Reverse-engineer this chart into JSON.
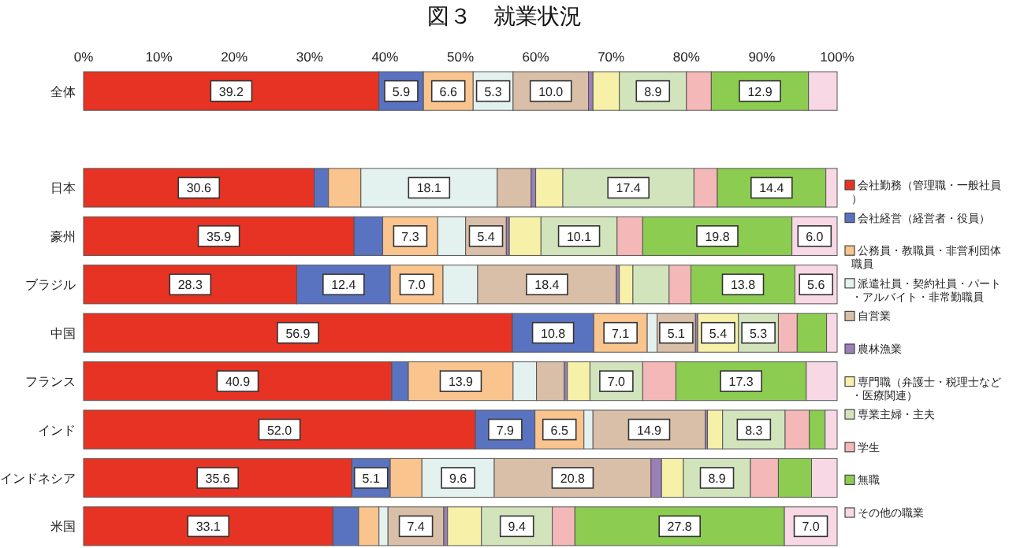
{
  "chart_data": {
    "type": "bar",
    "orientation": "horizontal",
    "stacked": true,
    "title": "図３　就業状況",
    "categories": [
      "全体",
      null,
      "日本",
      "豪州",
      "ブラジル",
      "中国",
      "フランス",
      "インド",
      "インドネシア",
      "米国"
    ],
    "xlim": [
      0,
      100
    ],
    "xticks": [
      {
        "value": 0,
        "label": "0%"
      },
      {
        "value": 10,
        "label": "10%"
      },
      {
        "value": 20,
        "label": "20%"
      },
      {
        "value": 30,
        "label": "30%"
      },
      {
        "value": 40,
        "label": "40%"
      },
      {
        "value": 50,
        "label": "50%"
      },
      {
        "value": 60,
        "label": "60%"
      },
      {
        "value": 70,
        "label": "70%"
      },
      {
        "value": 80,
        "label": "80%"
      },
      {
        "value": 90,
        "label": "90%"
      },
      {
        "value": 100,
        "label": "100%"
      }
    ],
    "grid": false,
    "legend": "right",
    "series": [
      {
        "name": "会社勤務（管理職・一般社員）",
        "color": "#e63323",
        "values": [
          39.2,
          null,
          30.6,
          35.9,
          28.3,
          56.9,
          40.9,
          52.0,
          35.6,
          33.1
        ],
        "value_labels": [
          "39.2",
          null,
          "30.6",
          "35.9",
          "28.3",
          "56.9",
          "40.9",
          "52.0",
          "35.6",
          "33.1"
        ]
      },
      {
        "name": "会社経営（経営者・役員）",
        "color": "#5a73c0",
        "values": [
          5.9,
          null,
          1.9,
          3.8,
          12.4,
          10.8,
          2.2,
          7.9,
          5.1,
          3.4
        ],
        "value_labels": [
          "5.9",
          null,
          null,
          null,
          "12.4",
          "10.8",
          null,
          "7.9",
          "5.1",
          null
        ]
      },
      {
        "name": "公務員・教職員・非営利団体職員",
        "color": "#f9c48e",
        "values": [
          6.6,
          null,
          4.3,
          7.3,
          7.0,
          7.1,
          13.9,
          6.5,
          4.2,
          2.7
        ],
        "value_labels": [
          "6.6",
          null,
          null,
          "7.3",
          "7.0",
          "7.1",
          "13.9",
          "6.5",
          null,
          null
        ]
      },
      {
        "name": "派遣社員・契約社員・パート・アルバイト・非常勤職員",
        "color": "#e3f1ef",
        "values": [
          5.3,
          null,
          18.1,
          3.7,
          4.6,
          1.3,
          3.1,
          1.2,
          9.6,
          1.2
        ],
        "value_labels": [
          "5.3",
          null,
          "18.1",
          null,
          null,
          null,
          null,
          null,
          "9.6",
          null
        ]
      },
      {
        "name": "自営業",
        "color": "#d9bfa8",
        "values": [
          10.0,
          null,
          4.5,
          5.4,
          18.4,
          5.1,
          3.7,
          14.9,
          20.8,
          7.4
        ],
        "value_labels": [
          "10.0",
          null,
          null,
          "5.4",
          "18.4",
          "5.1",
          null,
          "14.9",
          "20.8",
          "7.4"
        ]
      },
      {
        "name": "農林漁業",
        "color": "#9b7fb8",
        "values": [
          0.6,
          null,
          0.6,
          0.4,
          0.4,
          0.3,
          0.4,
          0.3,
          1.4,
          0.5
        ],
        "value_labels": [
          null,
          null,
          null,
          null,
          null,
          null,
          null,
          null,
          null,
          null
        ]
      },
      {
        "name": "専門職（弁護士・税理士など・医療関連）",
        "color": "#f6f0a8",
        "values": [
          3.5,
          null,
          3.6,
          4.2,
          1.8,
          5.4,
          3.0,
          2.0,
          2.9,
          4.5
        ],
        "value_labels": [
          null,
          null,
          null,
          null,
          null,
          "5.4",
          null,
          null,
          null,
          null
        ]
      },
      {
        "name": "専業主婦・主夫",
        "color": "#d2e4bc",
        "values": [
          8.9,
          null,
          17.4,
          10.1,
          4.8,
          5.3,
          7.0,
          8.3,
          8.9,
          9.4
        ],
        "value_labels": [
          "8.9",
          null,
          "17.4",
          "10.1",
          null,
          "5.3",
          "7.0",
          "8.3",
          "8.9",
          "9.4"
        ]
      },
      {
        "name": "学生",
        "color": "#f4b8b8",
        "values": [
          3.3,
          null,
          3.1,
          3.4,
          2.9,
          2.5,
          4.4,
          3.2,
          3.7,
          3.0
        ],
        "value_labels": [
          null,
          null,
          null,
          null,
          null,
          null,
          null,
          null,
          null,
          null
        ]
      },
      {
        "name": "無職",
        "color": "#8ccc50",
        "values": [
          12.9,
          null,
          14.4,
          19.8,
          13.8,
          3.9,
          17.3,
          2.1,
          4.4,
          27.8
        ],
        "value_labels": [
          "12.9",
          null,
          "14.4",
          "19.8",
          "13.8",
          null,
          "17.3",
          null,
          null,
          "27.8"
        ]
      },
      {
        "name": "その他の職業",
        "color": "#f8d8e4",
        "values": [
          3.8,
          null,
          1.5,
          6.0,
          5.6,
          1.4,
          4.1,
          1.6,
          3.4,
          7.0
        ],
        "value_labels": [
          null,
          null,
          null,
          "6.0",
          "5.6",
          null,
          null,
          null,
          null,
          "7.0"
        ]
      }
    ]
  }
}
